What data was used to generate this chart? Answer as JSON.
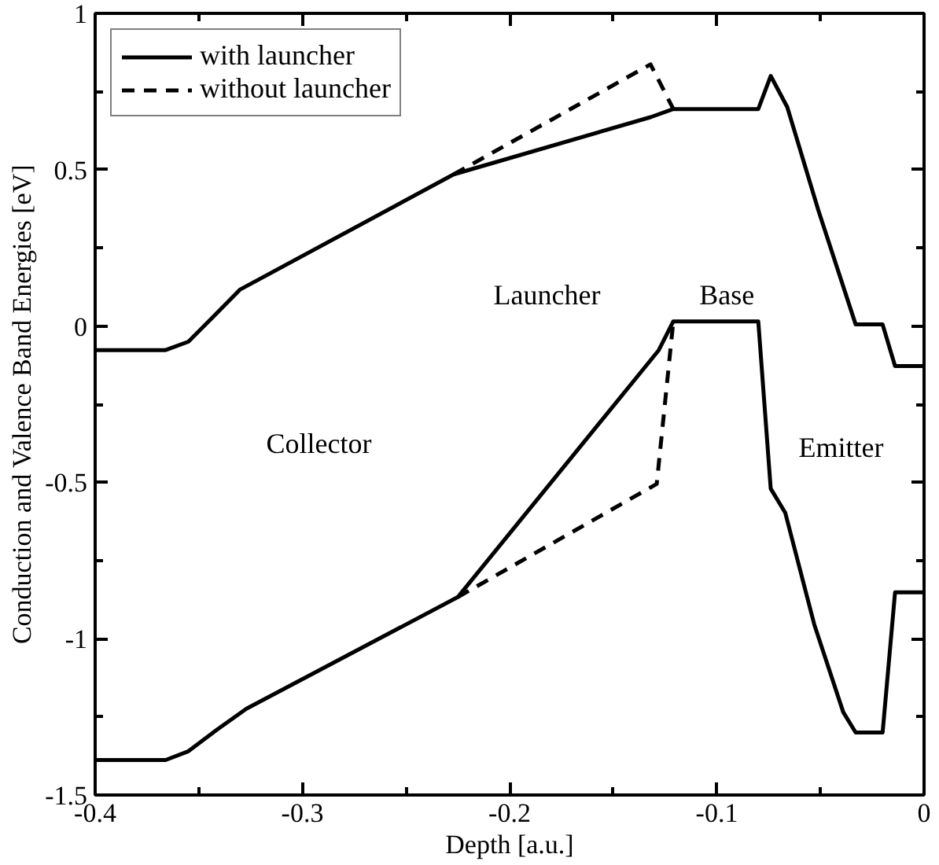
{
  "chart_data": {
    "type": "line",
    "xlabel": "Depth [a.u.]",
    "ylabel": "Conduction and Valence Band Energies [eV]",
    "xlim": [
      -0.4,
      0
    ],
    "ylim": [
      -1.5,
      1
    ],
    "xticks": [
      -0.4,
      -0.3,
      -0.2,
      -0.1,
      0
    ],
    "yticks": [
      -1.5,
      -1,
      -0.5,
      0,
      0.5,
      1
    ],
    "grid": false,
    "legend": "top left",
    "series": [
      {
        "name": "with launcher",
        "color": "#000000",
        "line_style": "solid",
        "x": [
          -0.4,
          -0.366,
          -0.355,
          -0.343,
          -0.33,
          -0.227,
          -0.132,
          -0.121,
          -0.08,
          -0.074,
          -0.066,
          -0.051,
          -0.033,
          -0.02,
          -0.014,
          0
        ],
        "values": [
          -0.077,
          -0.077,
          -0.05,
          0.03,
          0.117,
          0.485,
          0.668,
          0.694,
          0.694,
          0.8,
          0.7,
          0.37,
          0.005,
          0.005,
          -0.128,
          -0.128
        ]
      },
      {
        "color": "#000000",
        "line_style": "solid",
        "x": [
          -0.4,
          -0.366,
          -0.355,
          -0.341,
          -0.327,
          -0.225,
          -0.128,
          -0.121,
          -0.08,
          -0.074,
          -0.067,
          -0.053,
          -0.039,
          -0.033,
          -0.02,
          -0.014,
          0
        ],
        "values": [
          -1.388,
          -1.388,
          -1.36,
          -1.29,
          -1.224,
          -0.867,
          -0.077,
          0.015,
          0.015,
          -0.52,
          -0.597,
          -0.954,
          -1.235,
          -1.3,
          -1.3,
          -0.852,
          -0.852
        ]
      },
      {
        "name": "without launcher",
        "color": "#000000",
        "line_style": "dashed",
        "x": [
          -0.227,
          -0.132,
          -0.121
        ],
        "values": [
          0.485,
          0.837,
          0.694
        ]
      },
      {
        "color": "#000000",
        "line_style": "dashed",
        "x": [
          -0.225,
          -0.129,
          -0.121
        ],
        "values": [
          -0.867,
          -0.505,
          0.015
        ]
      }
    ],
    "annotations": [
      "Collector",
      "Launcher",
      "Base",
      "Emitter"
    ]
  }
}
